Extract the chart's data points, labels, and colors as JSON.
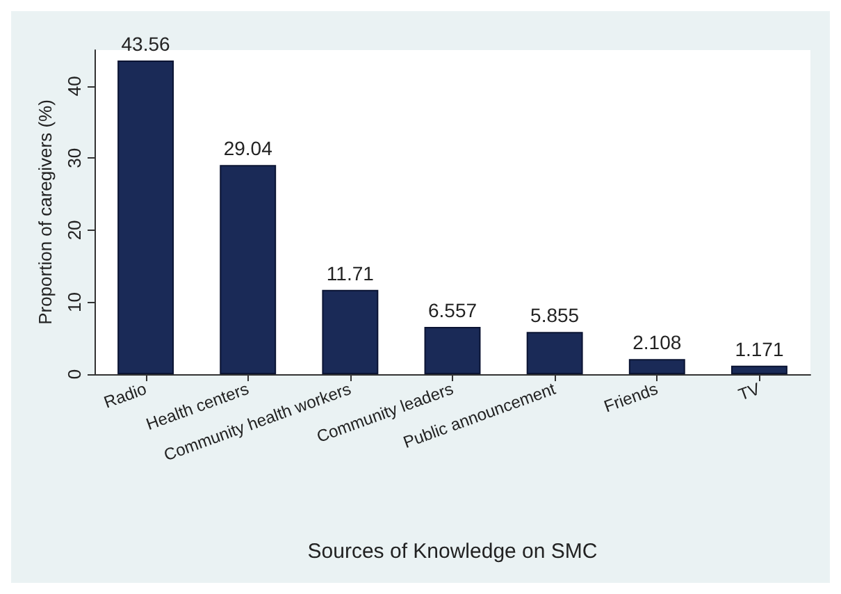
{
  "chart_data": {
    "type": "bar",
    "xlabel": "Sources of Knowledge on SMC",
    "ylabel": "Proportion of caregivers (%)",
    "categories": [
      "Radio",
      "Health centers",
      "Community health workers",
      "Community leaders",
      "Public announcement",
      "Friends",
      "TV"
    ],
    "values": [
      43.56,
      29.04,
      11.71,
      6.557,
      5.855,
      2.108,
      1.171
    ],
    "color": "#1a2a57",
    "ylim": [
      0,
      45
    ],
    "yticks": [
      0,
      10,
      20,
      30,
      40
    ],
    "grid": false,
    "data_labels": true
  }
}
